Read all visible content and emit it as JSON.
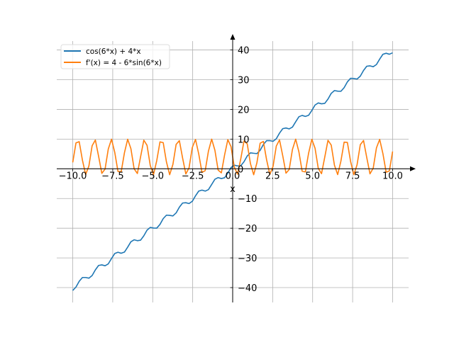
{
  "chart_data": {
    "type": "line",
    "title": "",
    "xlabel": "x",
    "ylabel": "",
    "xlim": [
      -11,
      11
    ],
    "ylim": [
      -45,
      43
    ],
    "grid": true,
    "legend_placement": "top-left",
    "x_ticks": [
      -10,
      -7.5,
      -5,
      -2.5,
      0,
      2.5,
      5,
      7.5,
      10
    ],
    "x_tick_labels": [
      "−10.0",
      "−7.5",
      "−5.0",
      "−2.5",
      "0.0",
      "2.5",
      "5.0",
      "7.5",
      "10.0"
    ],
    "y_ticks": [
      -40,
      -30,
      -20,
      -10,
      0,
      10,
      20,
      30,
      40
    ],
    "y_tick_labels": [
      "−40",
      "−30",
      "−20",
      "−10",
      "0",
      "10",
      "20",
      "30",
      "40"
    ],
    "x_samples": {
      "start": -10,
      "stop": 10,
      "num": 100
    },
    "series": [
      {
        "name": "cos(6*x) + 4*x",
        "expression": "cos(6*x) + 4*x",
        "color": "#1f77b4"
      },
      {
        "name": "f'(x) = 4 - 6*sin(6*x)",
        "expression": "4 - 6*sin(6*x)",
        "color": "#ff7f0e"
      }
    ]
  }
}
